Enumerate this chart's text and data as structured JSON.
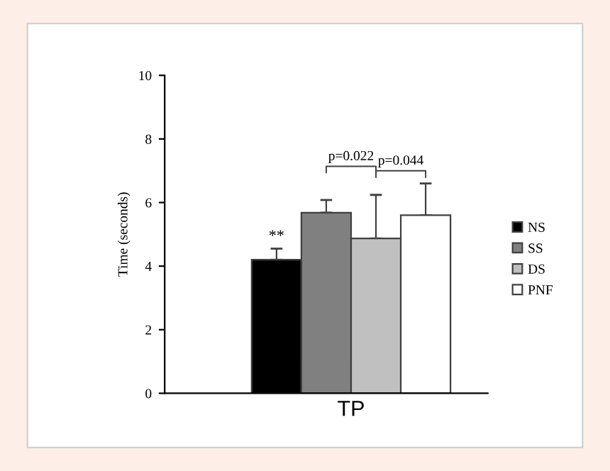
{
  "chart_data": {
    "type": "bar",
    "ylabel": "Time (seconds)",
    "categories": [
      "TP"
    ],
    "series": [
      {
        "name": "NS",
        "color": "#000000",
        "values": [
          4.2
        ],
        "errors": [
          0.35
        ]
      },
      {
        "name": "SS",
        "color": "#808080",
        "values": [
          5.68
        ],
        "errors": [
          0.4
        ]
      },
      {
        "name": "DS",
        "color": "#c0c0c0",
        "values": [
          4.87
        ],
        "errors": [
          1.37
        ]
      },
      {
        "name": "PNF",
        "color": "#ffffff",
        "values": [
          5.6
        ],
        "errors": [
          1.0
        ]
      }
    ],
    "ylim": [
      0,
      10
    ],
    "yticks": [
      0,
      2,
      4,
      6,
      8,
      10
    ],
    "grid": false,
    "legend": "right",
    "annotations": [
      "**",
      "p=0.022",
      "p=0.044"
    ]
  }
}
